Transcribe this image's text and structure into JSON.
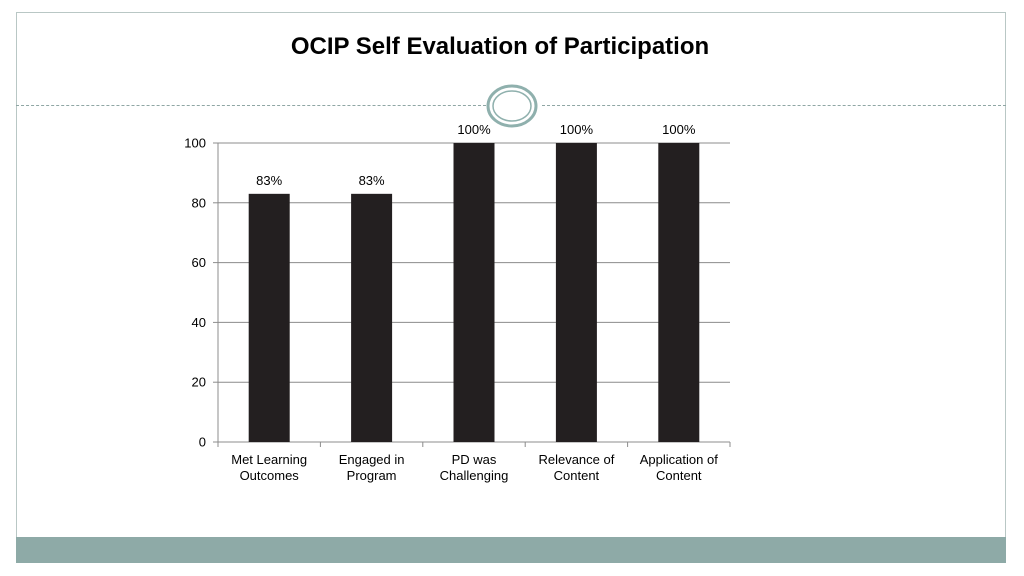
{
  "slide": {
    "title": "OCIP Self Evaluation of Participation"
  },
  "colors": {
    "bar": "#231f20",
    "frame": "#b9c7c5",
    "footer": "#8eaaa7",
    "ornament": "#8fb0ad",
    "gridline": "#8c8c8c"
  },
  "chart_data": {
    "type": "bar",
    "title": "OCIP Self Evaluation of Participation",
    "categories": [
      [
        "Met Learning",
        "Outcomes"
      ],
      [
        "Engaged in",
        "Program"
      ],
      [
        "PD was",
        "Challenging"
      ],
      [
        "Relevance of",
        "Content"
      ],
      [
        "Application of",
        "Content"
      ]
    ],
    "values": [
      83,
      83,
      100,
      100,
      100
    ],
    "data_labels": [
      "83%",
      "83%",
      "100%",
      "100%",
      "100%"
    ],
    "ylim": [
      0,
      100
    ],
    "yticks": [
      0,
      20,
      40,
      60,
      80,
      100
    ],
    "grid": true,
    "legend": "none",
    "xlabel": "",
    "ylabel": ""
  }
}
